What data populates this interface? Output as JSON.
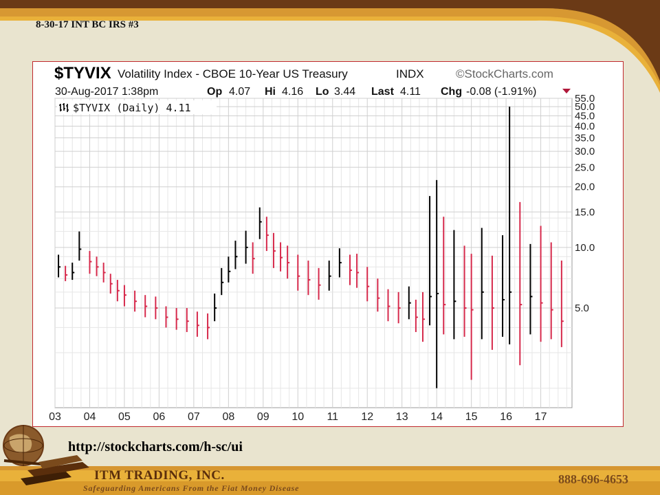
{
  "slide": {
    "label": "8-30-17 INT  BC IRS #3",
    "url": "http://stockcharts.com/h-sc/ui",
    "company": "ITM TRADING, INC.",
    "tagline": "Safeguarding  Americans  From  the Fiat Money Disease",
    "phone": "888-696-4653"
  },
  "colors": {
    "background": "#e9e4cf",
    "band_dark": "#6b3a16",
    "band_gold": "#e9b13a",
    "frame_border": "#c0282d",
    "bar_up": "#000000",
    "bar_down": "#d6294b"
  },
  "chart_header": {
    "symbol": "$TYVIX",
    "name": "Volatility Index - CBOE 10-Year US Treasury",
    "exchange": "INDX",
    "source": "©StockCharts.com",
    "datetime": "30-Aug-2017 1:38pm",
    "op_label": "Op",
    "op_value": "4.07",
    "hi_label": "Hi",
    "hi_value": "4.16",
    "lo_label": "Lo",
    "lo_value": "3.44",
    "last_label": "Last",
    "last_value": "4.11",
    "chg_label": "Chg",
    "chg_value": "-0.08 (-1.91%)",
    "legend": "$TYVIX (Daily) 4.11"
  },
  "chart_data": {
    "type": "line",
    "symbol": "$TYVIX",
    "series_name": "$TYVIX (Daily)",
    "y_scale": "log",
    "ylim": [
      1.6,
      55.0
    ],
    "xlim": [
      2003,
      2017.9
    ],
    "y_ticks": [
      "5.0",
      "10.0",
      "15.0",
      "20.0",
      "25.0",
      "30.0",
      "35.0",
      "40.0",
      "45.0",
      "50.0",
      "55.0"
    ],
    "x_ticks": [
      "03",
      "04",
      "05",
      "06",
      "07",
      "08",
      "09",
      "10",
      "11",
      "12",
      "13",
      "14",
      "15",
      "16",
      "17"
    ],
    "grid": true,
    "legend": "top-left",
    "x": [
      2003.1,
      2003.3,
      2003.5,
      2003.7,
      2004.0,
      2004.2,
      2004.4,
      2004.6,
      2004.8,
      2005.0,
      2005.3,
      2005.6,
      2005.9,
      2006.2,
      2006.5,
      2006.8,
      2007.1,
      2007.4,
      2007.6,
      2007.8,
      2008.0,
      2008.2,
      2008.5,
      2008.7,
      2008.9,
      2009.1,
      2009.3,
      2009.5,
      2009.7,
      2010.0,
      2010.3,
      2010.6,
      2010.9,
      2011.2,
      2011.5,
      2011.7,
      2012.0,
      2012.3,
      2012.6,
      2012.9,
      2013.2,
      2013.4,
      2013.6,
      2013.8,
      2014.0,
      2014.2,
      2014.5,
      2014.8,
      2015.0,
      2015.3,
      2015.6,
      2015.9,
      2016.1,
      2016.4,
      2016.7,
      2017.0,
      2017.3,
      2017.6
    ],
    "close": [
      8.0,
      7.3,
      7.5,
      9.8,
      8.5,
      8.0,
      7.5,
      6.6,
      6.1,
      5.8,
      5.4,
      5.1,
      5.0,
      4.5,
      4.4,
      4.3,
      4.1,
      4.0,
      5.0,
      6.7,
      7.6,
      9.0,
      10.0,
      8.8,
      13.4,
      11.5,
      9.6,
      8.9,
      8.4,
      7.2,
      6.9,
      6.5,
      7.2,
      8.4,
      7.7,
      7.5,
      6.4,
      5.6,
      5.1,
      5.0,
      5.3,
      4.5,
      4.4,
      5.7,
      5.9,
      5.2,
      5.4,
      5.0,
      4.9,
      6.0,
      5.0,
      5.5,
      6.0,
      5.2,
      5.7,
      5.3,
      4.9,
      4.3
    ],
    "low": [
      7.1,
      6.8,
      6.9,
      8.6,
      7.4,
      7.2,
      6.7,
      5.9,
      5.4,
      5.1,
      4.8,
      4.5,
      4.4,
      4.0,
      3.9,
      3.8,
      3.6,
      3.5,
      4.3,
      5.8,
      6.7,
      7.8,
      8.3,
      7.4,
      11.0,
      9.6,
      7.9,
      7.6,
      7.0,
      6.1,
      5.8,
      5.5,
      6.1,
      7.1,
      6.5,
      6.3,
      5.4,
      4.8,
      4.3,
      4.2,
      4.4,
      3.8,
      3.4,
      4.1,
      2.0,
      3.7,
      3.5,
      3.6,
      2.2,
      3.5,
      3.1,
      3.6,
      3.3,
      2.6,
      3.7,
      3.4,
      3.5,
      3.2
    ],
    "high": [
      9.2,
      8.1,
      8.4,
      12.0,
      9.6,
      9.0,
      8.4,
      7.4,
      6.9,
      6.5,
      6.1,
      5.8,
      5.7,
      5.1,
      5.0,
      5.0,
      4.8,
      4.7,
      5.9,
      7.9,
      9.0,
      10.8,
      12.1,
      10.6,
      15.8,
      14.2,
      11.8,
      10.6,
      10.2,
      9.2,
      8.6,
      7.9,
      8.6,
      9.9,
      9.2,
      9.3,
      8.0,
      7.0,
      6.2,
      6.0,
      6.4,
      5.5,
      6.0,
      18.0,
      21.6,
      14.2,
      12.2,
      10.2,
      9.3,
      12.5,
      9.1,
      11.5,
      50.0,
      16.8,
      10.4,
      12.8,
      10.6,
      8.6
    ]
  }
}
